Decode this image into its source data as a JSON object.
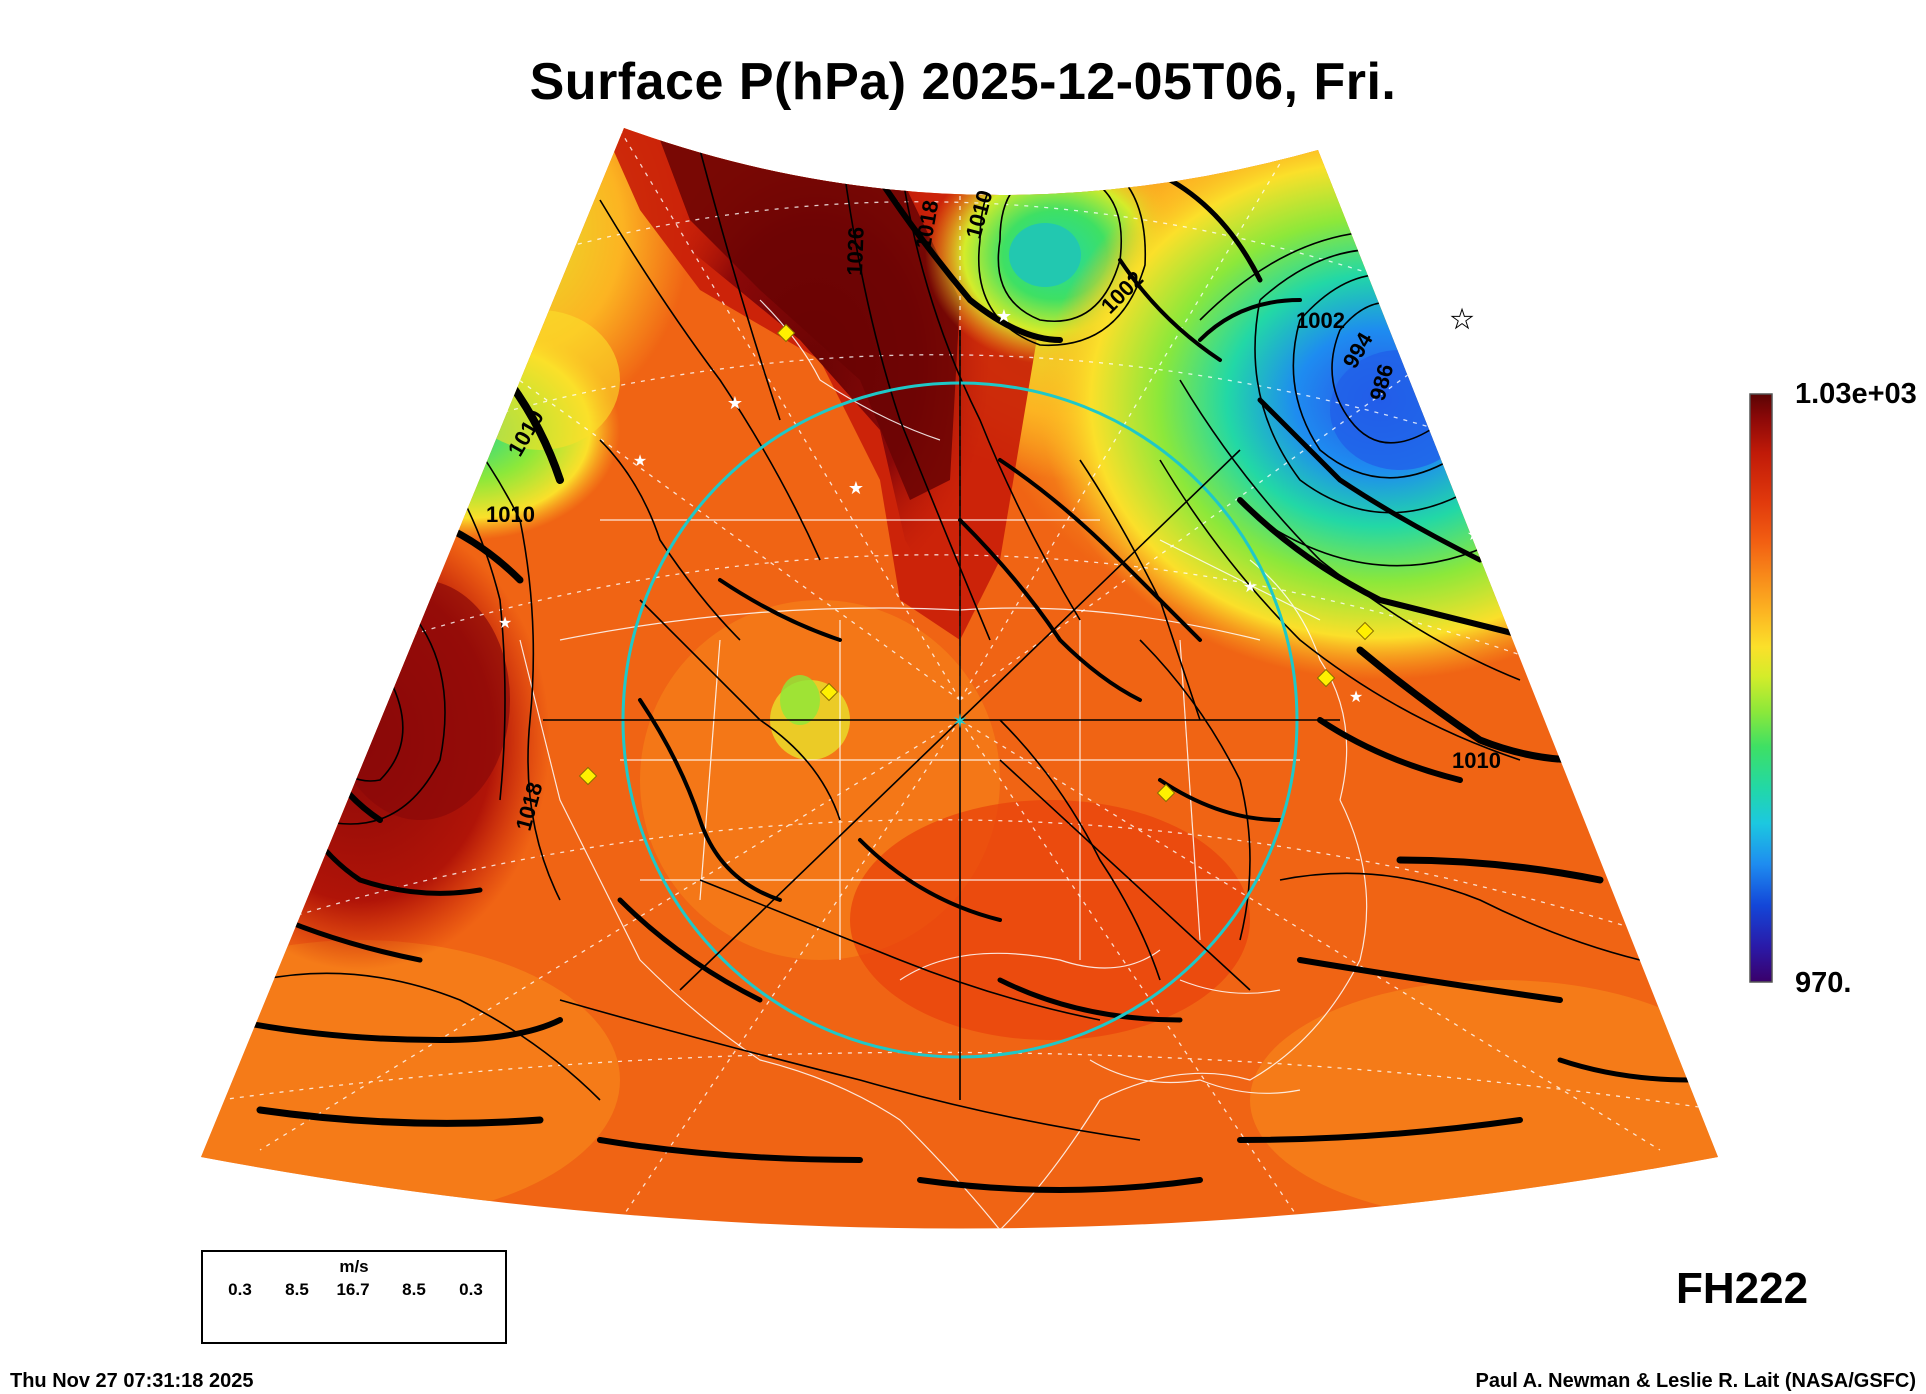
{
  "title": "Surface P(hPa) 2025-12-05T06, Fri.",
  "colorbar": {
    "max_label": "1.03e+03",
    "min_label": "970.",
    "colormap": [
      "#3a006a",
      "#2a1aa8",
      "#1346d8",
      "#1e8cf0",
      "#1cc8e0",
      "#22d8a6",
      "#3ee064",
      "#8ce83a",
      "#d4ec2a",
      "#fbe02a",
      "#fcb422",
      "#f88a1a",
      "#f25e12",
      "#e0380c",
      "#c01a08",
      "#8a0808",
      "#5a0404"
    ]
  },
  "forecast_hour": "FH222",
  "timestamp": "Thu Nov 27 07:31:18 2025",
  "credit": "Paul A. Newman & Leslie R. Lait (NASA/GSFC)",
  "wind_legend": {
    "unit": "m/s",
    "values": [
      "0.3",
      "8.5",
      "16.7",
      "8.5",
      "0.3"
    ]
  },
  "isobar_labels": [
    "1026",
    "1018",
    "1010",
    "1002",
    "1002",
    "994",
    "986",
    "1010",
    "1010",
    "1018",
    "1010"
  ],
  "map": {
    "projection": "polar stereographic sector",
    "center_marker_color": "#1fc8c8",
    "range_ring_color": "#1fc8c8",
    "high_pressure_color": "#5a0404",
    "low_pressure_color": "#1346d8"
  }
}
